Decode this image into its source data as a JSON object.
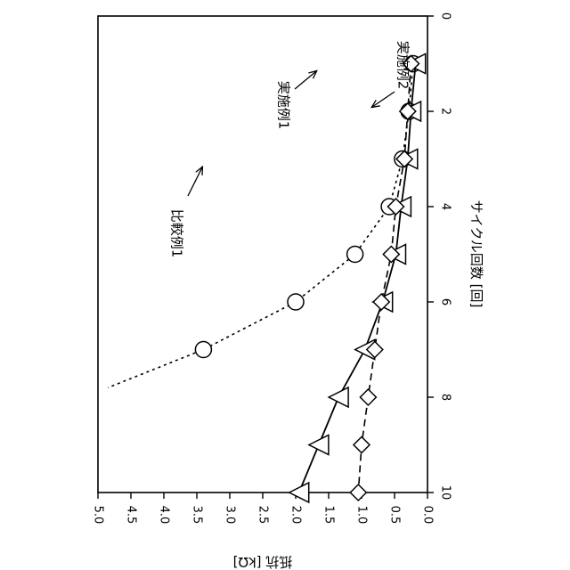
{
  "chart_data": {
    "type": "line",
    "orientation": "rotated 90 degrees clockwise (x axis runs top to bottom along the right edge, y axis runs right to left along the bottom edge)",
    "title": "",
    "xlabel": "サイクル回数 [回]",
    "ylabel": "抵抗 [kΩ]",
    "xlim": [
      0,
      10
    ],
    "ylim": [
      0,
      5
    ],
    "x_ticks": [
      "0",
      "2",
      "4",
      "6",
      "8",
      "10"
    ],
    "y_ticks": [
      "0.0",
      "0.5",
      "1.0",
      "1.5",
      "2.0",
      "2.5",
      "3.0",
      "3.5",
      "4.0",
      "4.5",
      "5.0"
    ],
    "grid": false,
    "series": [
      {
        "name": "比較例1",
        "marker": "circle",
        "line_style": "dotted",
        "x": [
          1,
          2,
          3,
          4,
          5,
          6,
          7,
          7.8
        ],
        "y": [
          0.22,
          0.28,
          0.38,
          0.58,
          1.1,
          2.0,
          3.4,
          4.85
        ],
        "marker_points": 7
      },
      {
        "name": "実施例1",
        "marker": "triangle",
        "line_style": "solid",
        "x": [
          1,
          2,
          3,
          4,
          5,
          6,
          7,
          8,
          9,
          10
        ],
        "y": [
          0.18,
          0.25,
          0.3,
          0.4,
          0.48,
          0.68,
          0.95,
          1.35,
          1.65,
          1.95
        ]
      },
      {
        "name": "実施例2",
        "marker": "diamond",
        "line_style": "dashed",
        "x": [
          1,
          2,
          3,
          4,
          5,
          6,
          7,
          8,
          9,
          10
        ],
        "y": [
          0.25,
          0.3,
          0.35,
          0.48,
          0.55,
          0.7,
          0.8,
          0.9,
          1.0,
          1.05
        ]
      }
    ],
    "annotations": [
      {
        "text": "比較例1",
        "series": "比較例1"
      },
      {
        "text": "実施例1",
        "series": "実施例1"
      },
      {
        "text": "実施例2",
        "series": "実施例2"
      }
    ]
  }
}
